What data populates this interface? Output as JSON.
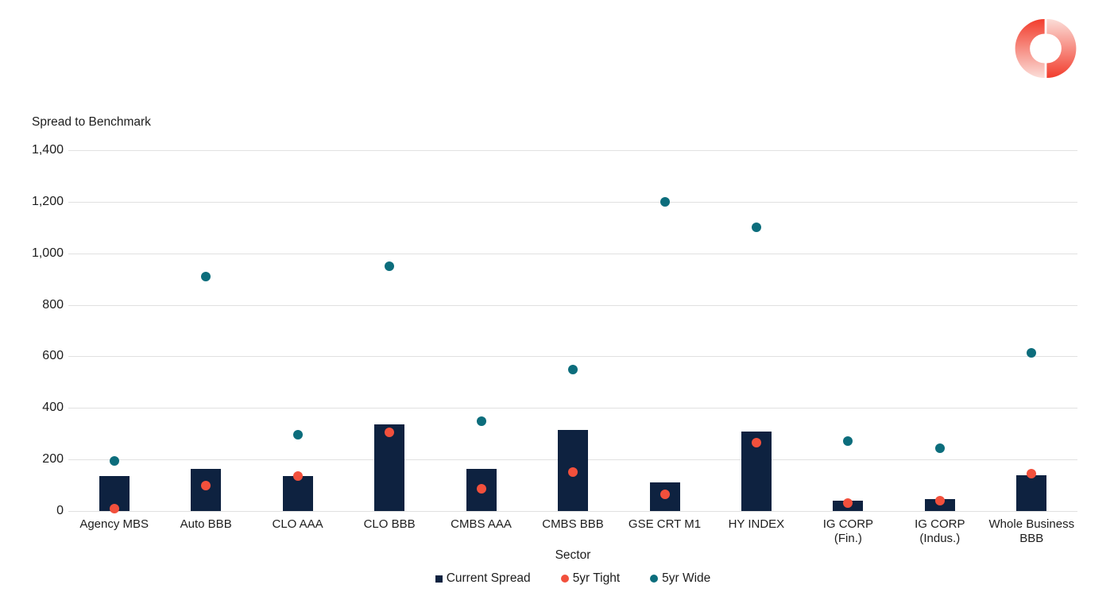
{
  "brand": {
    "logo_colors": {
      "strong": "#f23d2d",
      "light": "#fbddd8"
    }
  },
  "chart_data": {
    "type": "bar",
    "title": "Spread to Benchmark",
    "xlabel": "Sector",
    "ylabel": "Spread to Benchmark",
    "ylim": [
      0,
      1400
    ],
    "ytick_step": 200,
    "ytick_labels": [
      "0",
      "200",
      "400",
      "600",
      "800",
      "1,000",
      "1,200",
      "1,400"
    ],
    "grid": true,
    "legend_position": "bottom",
    "categories": [
      "Agency MBS",
      "Auto BBB",
      "CLO AAA",
      "CLO BBB",
      "CMBS AAA",
      "CMBS BBB",
      "GSE CRT M1",
      "HY INDEX",
      "IG CORP (Fin.)",
      "IG CORP (Indus.)",
      "Whole Business BBB"
    ],
    "category_lines": [
      [
        "Agency MBS"
      ],
      [
        "Auto BBB"
      ],
      [
        "CLO AAA"
      ],
      [
        "CLO BBB"
      ],
      [
        "CMBS AAA"
      ],
      [
        "CMBS BBB"
      ],
      [
        "GSE CRT M1"
      ],
      [
        "HY INDEX"
      ],
      [
        "IG CORP",
        "(Fin.)"
      ],
      [
        "IG CORP",
        "(Indus.)"
      ],
      [
        "Whole Business",
        "BBB"
      ]
    ],
    "series": [
      {
        "name": "Current Spread",
        "marker": "square",
        "color": "#0e2240",
        "values": [
          135,
          165,
          135,
          335,
          165,
          315,
          110,
          310,
          40,
          45,
          140
        ]
      },
      {
        "name": "5yr Tight",
        "marker": "circle",
        "color": "#f2503c",
        "values": [
          10,
          100,
          135,
          305,
          85,
          150,
          65,
          265,
          30,
          40,
          145
        ]
      },
      {
        "name": "5yr Wide",
        "marker": "circle",
        "color": "#0c6d7c",
        "values": [
          195,
          910,
          295,
          950,
          350,
          550,
          1200,
          1100,
          270,
          245,
          615
        ]
      }
    ],
    "colors": {
      "grid": "#e1e1e1",
      "text": "#1d1d1d"
    }
  }
}
